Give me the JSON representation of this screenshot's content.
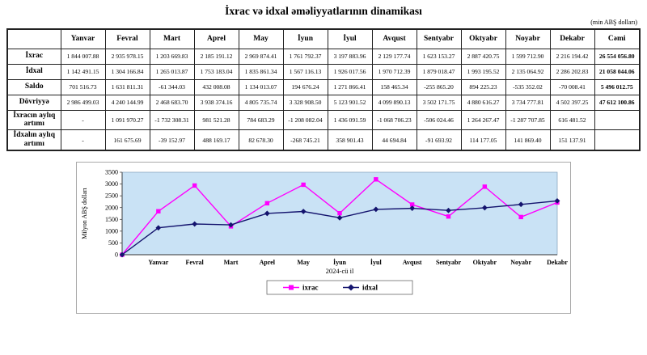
{
  "page": {
    "title": "İxrac və idxal əməliyyatlarının dinamikası",
    "unit_note": "(min ABŞ dolları)"
  },
  "table": {
    "header": [
      "Yanvar",
      "Fevral",
      "Mart",
      "Aprel",
      "May",
      "İyun",
      "İyul",
      "Avqust",
      "Sentyabr",
      "Oktyabr",
      "Noyabr",
      "Dekabr",
      "Cəmi"
    ],
    "rows": [
      {
        "label": "İxrac",
        "values": [
          "1 844 007.88",
          "2 935 978.15",
          "1 203 669.83",
          "2 185 191.12",
          "2 969 874.41",
          "1 761 792.37",
          "3 197 883.96",
          "2 129 177.74",
          "1 623 153.27",
          "2 887 420.75",
          "1 599 712.90",
          "2 216 194.42",
          "26 554 056.80"
        ]
      },
      {
        "label": "İdxal",
        "values": [
          "1 142 491.15",
          "1 304 166.84",
          "1 265 013.87",
          "1 753 183.04",
          "1 835 861.34",
          "1 567 116.13",
          "1 926 017.56",
          "1 970 712.39",
          "1 879 018.47",
          "1 993 195.52",
          "2 135 064.92",
          "2 286 202.83",
          "21 058 044.06"
        ]
      },
      {
        "label": "Saldo",
        "values": [
          "701 516.73",
          "1 631 811.31",
          "-61 344.03",
          "432 008.08",
          "1 134 013.07",
          "194 676.24",
          "1 271 866.41",
          "158 465.34",
          "-255 865.20",
          "894 225.23",
          "-535 352.02",
          "-70 008.41",
          "5 496 012.75"
        ]
      },
      {
        "label": "Dövriyyə",
        "values": [
          "2 986 499.03",
          "4 240 144.99",
          "2 468 683.70",
          "3 938 374.16",
          "4 805 735.74",
          "3 328 908.50",
          "5 123 901.52",
          "4 099 890.13",
          "3 502 171.75",
          "4 880 616.27",
          "3 734 777.81",
          "4 502 397.25",
          "47 612 100.86"
        ]
      },
      {
        "label": "İxracın aylıq artımı",
        "values": [
          "-",
          "1 091 970.27",
          "-1 732 308.31",
          "981 521.28",
          "784 683.29",
          "-1 208 082.04",
          "1 436 091.59",
          "-1 068 706.23",
          "-506 024.46",
          "1 264 267.47",
          "-1 287 707.85",
          "616 481.52",
          ""
        ]
      },
      {
        "label": "İdxalın aylıq artımı",
        "values": [
          "-",
          "161 675.69",
          "-39 152.97",
          "488 169.17",
          "82 678.30",
          "-268 745.21",
          "358 901.43",
          "44 694.84",
          "-91 693.92",
          "114 177.05",
          "141 869.40",
          "151 137.91",
          ""
        ]
      }
    ]
  },
  "chart_data": {
    "type": "line",
    "x": [
      "",
      "Yanvar",
      "Fevral",
      "Mart",
      "Aprel",
      "May",
      "İyun",
      "İyul",
      "Avqust",
      "Sentyabr",
      "Oktyabr",
      "Noyabr",
      "Dekabr"
    ],
    "series": [
      {
        "name": "ixrac",
        "color": "#FF00FF",
        "marker": "square",
        "values": [
          0,
          1844,
          2936,
          1204,
          2185,
          2970,
          1762,
          3198,
          2129,
          1623,
          2887,
          1600,
          2216
        ]
      },
      {
        "name": "idxal",
        "color": "#14146E",
        "marker": "diamond",
        "values": [
          0,
          1142,
          1304,
          1265,
          1753,
          1836,
          1567,
          1926,
          1971,
          1879,
          1993,
          2135,
          2286
        ]
      }
    ],
    "title": "",
    "ylabel": "Milyon ABŞ dolları",
    "xlabel": "2024-cü il",
    "ylim": [
      0,
      3500
    ],
    "yticks": [
      0,
      500,
      1000,
      1500,
      2000,
      2500,
      3000,
      3500
    ],
    "grid": false,
    "plot_bg": "#c9e2f5",
    "legend_position": "bottom"
  }
}
